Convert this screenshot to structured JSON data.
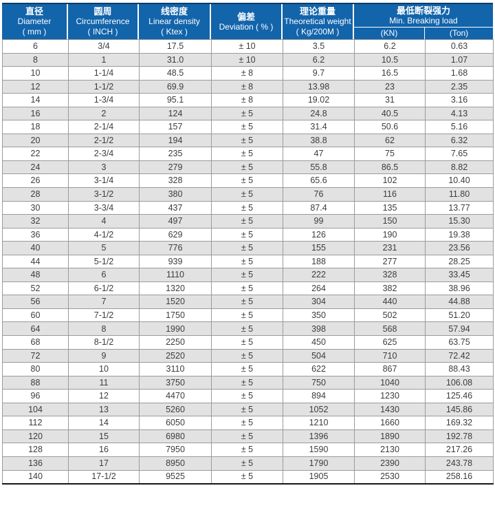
{
  "colors": {
    "header_bg": "#1264ab",
    "header_top_border": "#0c3c68",
    "header_text": "#ffffff",
    "row_alt_bg": "#e2e2e2",
    "grid_line": "#9a9a9a",
    "bottom_border": "#161616",
    "cell_text": "#3c3c3c"
  },
  "chart_data": {
    "type": "table",
    "columns": [
      {
        "zh": "直径",
        "en": "Diameter",
        "unit": "( mm )"
      },
      {
        "zh": "圆周",
        "en": "Circumference",
        "unit": "( INCH )"
      },
      {
        "zh": "线密度",
        "en": "Linear density",
        "unit": "( Ktex )"
      },
      {
        "zh": "偏差",
        "en": "Deviation ( % )",
        "unit": ""
      },
      {
        "zh": "理论重量",
        "en": "Theoretical weight",
        "unit": "( Kg/200M )"
      },
      {
        "zh": "最低断裂强力",
        "en": "Min. Breaking load",
        "sub": [
          "(KN)",
          "(Ton)"
        ]
      }
    ],
    "rows": [
      [
        "6",
        "3/4",
        "17.5",
        "± 10",
        "3.5",
        "6.2",
        "0.63"
      ],
      [
        "8",
        "1",
        "31.0",
        "± 10",
        "6.2",
        "10.5",
        "1.07"
      ],
      [
        "10",
        "1-1/4",
        "48.5",
        "± 8",
        "9.7",
        "16.5",
        "1.68"
      ],
      [
        "12",
        "1-1/2",
        "69.9",
        "± 8",
        "13.98",
        "23",
        "2.35"
      ],
      [
        "14",
        "1-3/4",
        "95.1",
        "± 8",
        "19.02",
        "31",
        "3.16"
      ],
      [
        "16",
        "2",
        "124",
        "± 5",
        "24.8",
        "40.5",
        "4.13"
      ],
      [
        "18",
        "2-1/4",
        "157",
        "± 5",
        "31.4",
        "50.6",
        "5.16"
      ],
      [
        "20",
        "2-1/2",
        "194",
        "± 5",
        "38.8",
        "62",
        "6.32"
      ],
      [
        "22",
        "2-3/4",
        "235",
        "± 5",
        "47",
        "75",
        "7.65"
      ],
      [
        "24",
        "3",
        "279",
        "± 5",
        "55.8",
        "86.5",
        "8.82"
      ],
      [
        "26",
        "3-1/4",
        "328",
        "± 5",
        "65.6",
        "102",
        "10.40"
      ],
      [
        "28",
        "3-1/2",
        "380",
        "± 5",
        "76",
        "116",
        "11.80"
      ],
      [
        "30",
        "3-3/4",
        "437",
        "± 5",
        "87.4",
        "135",
        "13.77"
      ],
      [
        "32",
        "4",
        "497",
        "± 5",
        "99",
        "150",
        "15.30"
      ],
      [
        "36",
        "4-1/2",
        "629",
        "± 5",
        "126",
        "190",
        "19.38"
      ],
      [
        "40",
        "5",
        "776",
        "± 5",
        "155",
        "231",
        "23.56"
      ],
      [
        "44",
        "5-1/2",
        "939",
        "± 5",
        "188",
        "277",
        "28.25"
      ],
      [
        "48",
        "6",
        "1110",
        "± 5",
        "222",
        "328",
        "33.45"
      ],
      [
        "52",
        "6-1/2",
        "1320",
        "± 5",
        "264",
        "382",
        "38.96"
      ],
      [
        "56",
        "7",
        "1520",
        "± 5",
        "304",
        "440",
        "44.88"
      ],
      [
        "60",
        "7-1/2",
        "1750",
        "± 5",
        "350",
        "502",
        "51.20"
      ],
      [
        "64",
        "8",
        "1990",
        "± 5",
        "398",
        "568",
        "57.94"
      ],
      [
        "68",
        "8-1/2",
        "2250",
        "± 5",
        "450",
        "625",
        "63.75"
      ],
      [
        "72",
        "9",
        "2520",
        "± 5",
        "504",
        "710",
        "72.42"
      ],
      [
        "80",
        "10",
        "3110",
        "± 5",
        "622",
        "867",
        "88.43"
      ],
      [
        "88",
        "11",
        "3750",
        "± 5",
        "750",
        "1040",
        "106.08"
      ],
      [
        "96",
        "12",
        "4470",
        "± 5",
        "894",
        "1230",
        "125.46"
      ],
      [
        "104",
        "13",
        "5260",
        "± 5",
        "1052",
        "1430",
        "145.86"
      ],
      [
        "112",
        "14",
        "6050",
        "± 5",
        "1210",
        "1660",
        "169.32"
      ],
      [
        "120",
        "15",
        "6980",
        "± 5",
        "1396",
        "1890",
        "192.78"
      ],
      [
        "128",
        "16",
        "7950",
        "± 5",
        "1590",
        "2130",
        "217.26"
      ],
      [
        "136",
        "17",
        "8950",
        "± 5",
        "1790",
        "2390",
        "243.78"
      ],
      [
        "140",
        "17-1/2",
        "9525",
        "± 5",
        "1905",
        "2530",
        "258.16"
      ]
    ]
  }
}
